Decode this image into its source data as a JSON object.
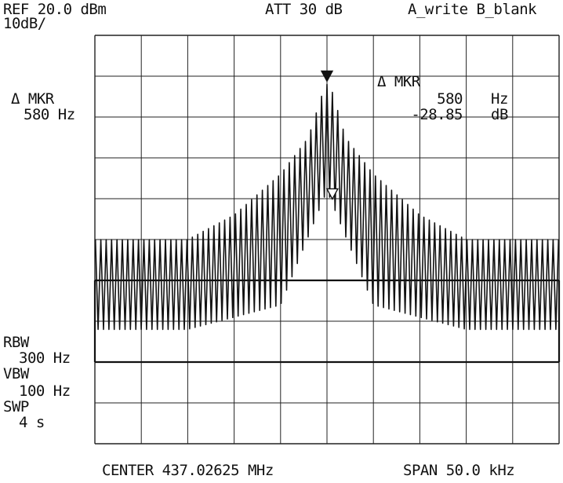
{
  "header": {
    "ref_level": "REF 20.0 dBm",
    "scale": "10dB/",
    "attenuation": "ATT 30 dB",
    "trace_mode": "A_write B_blank"
  },
  "marker_left": {
    "label": "Δ MKR",
    "value": "580 Hz"
  },
  "marker_readout": {
    "title": "Δ MKR",
    "freq_value": "580",
    "freq_unit": "Hz",
    "amp_value": "-28.85",
    "amp_unit": "dB"
  },
  "settings": {
    "rbw_label": "RBW",
    "rbw_value": "300 Hz",
    "vbw_label": "VBW",
    "vbw_value": "100 Hz",
    "swp_label": "SWP",
    "swp_value": "4 s"
  },
  "footer": {
    "center": "CENTER 437.02625 MHz",
    "span": "SPAN 50.0 kHz"
  },
  "chart_data": {
    "type": "line",
    "x_unit": "kHz offset from center",
    "xlim": [
      -25,
      25
    ],
    "ylim": [
      -80,
      20
    ],
    "grid": true,
    "grid_divisions": {
      "x": 10,
      "y": 10
    },
    "spectral_line_spacing_khz": 0.58,
    "envelope_peak_db": [
      {
        "x": -25.0,
        "y": -30
      },
      {
        "x": -20.0,
        "y": -30
      },
      {
        "x": -15.0,
        "y": -30
      },
      {
        "x": -10.0,
        "y": -24
      },
      {
        "x": -5.0,
        "y": -14
      },
      {
        "x": -2.0,
        "y": -5
      },
      {
        "x": -0.6,
        "y": 5
      },
      {
        "x": 0.0,
        "y": 8
      },
      {
        "x": 0.6,
        "y": 6
      },
      {
        "x": 2.0,
        "y": -5
      },
      {
        "x": 5.0,
        "y": -14
      },
      {
        "x": 10.0,
        "y": -24
      },
      {
        "x": 15.0,
        "y": -30
      },
      {
        "x": 20.0,
        "y": -30
      },
      {
        "x": 25.0,
        "y": -30
      }
    ],
    "envelope_floor_db": [
      {
        "x": -25.0,
        "y": -52
      },
      {
        "x": -15.0,
        "y": -52
      },
      {
        "x": -5.0,
        "y": -46
      },
      {
        "x": 0.0,
        "y": -18
      },
      {
        "x": 5.0,
        "y": -46
      },
      {
        "x": 15.0,
        "y": -52
      },
      {
        "x": 25.0,
        "y": -52
      }
    ],
    "markers": [
      {
        "type": "reference",
        "x": 0.0,
        "y": 8,
        "symbol": "filled-triangle"
      },
      {
        "type": "delta",
        "x": 0.58,
        "y": -20.85,
        "symbol": "open-triangle"
      }
    ],
    "boxed_region_db": [
      -40,
      -60
    ]
  }
}
